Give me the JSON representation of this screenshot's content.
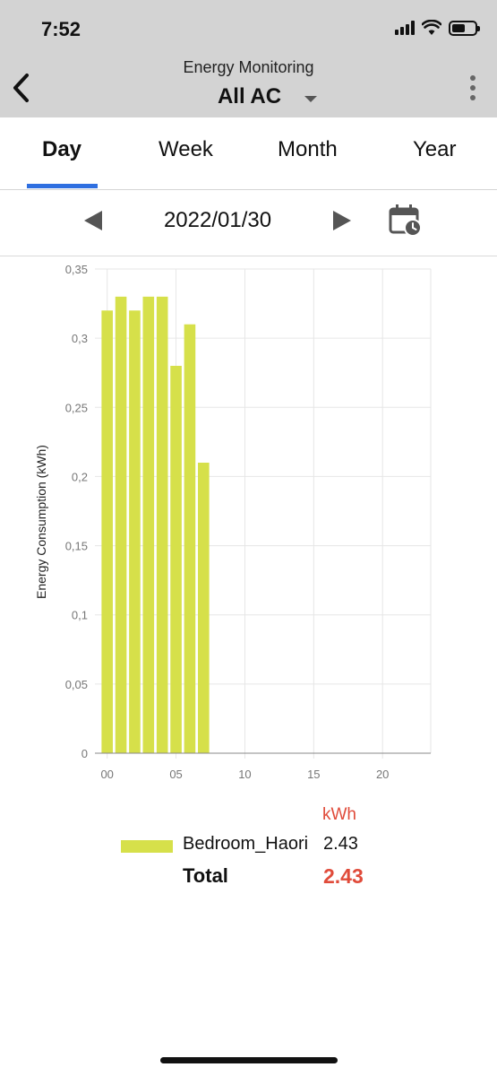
{
  "status_bar": {
    "time": "7:52"
  },
  "header": {
    "subtitle": "Energy Monitoring",
    "title": "All AC"
  },
  "tabs": [
    {
      "label": "Day",
      "active": true
    },
    {
      "label": "Week",
      "active": false
    },
    {
      "label": "Month",
      "active": false
    },
    {
      "label": "Year",
      "active": false
    }
  ],
  "date_nav": {
    "date": "2022/01/30"
  },
  "colors": {
    "accent": "#2f6fe0",
    "bar": "#d6e04a",
    "total": "#e04b3a"
  },
  "chart_data": {
    "type": "bar",
    "ylabel": "Energy Consumption (kWh)",
    "xlabel": "",
    "x": [
      0,
      1,
      2,
      3,
      4,
      5,
      6,
      7
    ],
    "values": [
      0.32,
      0.33,
      0.32,
      0.33,
      0.33,
      0.28,
      0.31,
      0.21
    ],
    "xlim": [
      -0.5,
      23.5
    ],
    "ylim": [
      0,
      0.35
    ],
    "x_ticks": [
      0,
      5,
      10,
      15,
      20
    ],
    "x_tick_labels": [
      "00",
      "05",
      "10",
      "15",
      "20"
    ],
    "y_ticks": [
      0,
      0.05,
      0.1,
      0.15,
      0.2,
      0.25,
      0.3,
      0.35
    ],
    "y_tick_labels": [
      "0",
      "0,05",
      "0,1",
      "0,15",
      "0,2",
      "0,25",
      "0,3",
      "0,35"
    ],
    "grid": true
  },
  "legend": {
    "unit": "kWh",
    "series": [
      {
        "name": "Bedroom_Haori",
        "value": "2.43"
      }
    ],
    "total_label": "Total",
    "total_value": "2.43"
  }
}
